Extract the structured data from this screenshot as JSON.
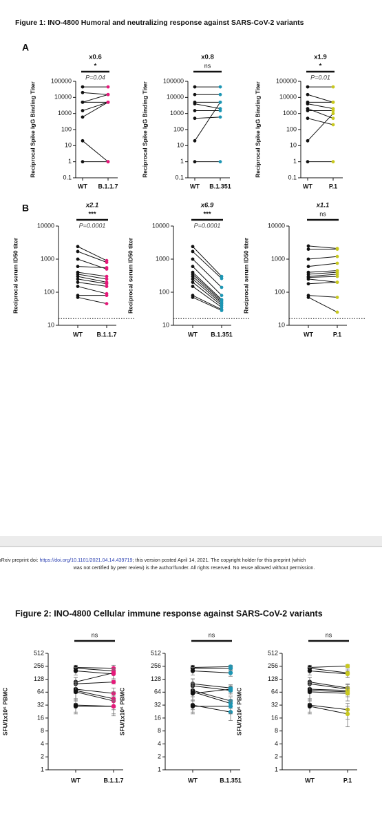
{
  "figure1_title": "Figure 1: INO-4800 Humoral and neutralizing response against SARS-CoV-2 variants",
  "panel_a": "A",
  "panel_b": "B",
  "footer": {
    "prefix": "bioRxiv preprint doi: ",
    "link": "https://doi.org/10.1101/2021.04.14.439719",
    "rest": "; this version posted April 14, 2021. The copyright holder for this preprint (which",
    "line2": "was not certified by peer review) is the author/funder. All rights reserved. No reuse allowed without permission."
  },
  "figure2_title": "Figure 2: INO-4800 Cellular immune response against SARS-CoV-2 variants",
  "chart_data": [
    {
      "type": "paired",
      "fold": "x0.6",
      "significance": "*",
      "p_value": "P=0.04",
      "ylabel": "Reciprocal Spike IgG Binding Titer",
      "categories": [
        "WT",
        "B.1.1.7"
      ],
      "colors": [
        "#111111",
        "#e6197a"
      ],
      "log": true,
      "ylim": [
        0.1,
        100000
      ],
      "yticks": [
        0.1,
        1,
        10,
        100,
        1000,
        10000,
        100000
      ],
      "pairs": [
        [
          45000,
          45000
        ],
        [
          20000,
          15000
        ],
        [
          5000,
          15000
        ],
        [
          5000,
          5000
        ],
        [
          1500,
          5000
        ],
        [
          600,
          5000
        ],
        [
          20,
          1
        ],
        [
          1,
          1
        ]
      ]
    },
    {
      "type": "paired",
      "fold": "x0.8",
      "significance": "ns",
      "ylabel": "Reciprocal Spike IgG Binding Titer",
      "categories": [
        "WT",
        "B.1.351"
      ],
      "colors": [
        "#111111",
        "#1c96b4"
      ],
      "log": true,
      "ylim": [
        0.1,
        100000
      ],
      "yticks": [
        0.1,
        1,
        10,
        100,
        1000,
        10000,
        100000
      ],
      "pairs": [
        [
          45000,
          45000
        ],
        [
          15000,
          15000
        ],
        [
          5000,
          5000
        ],
        [
          4000,
          2000
        ],
        [
          1500,
          1500
        ],
        [
          500,
          600
        ],
        [
          20,
          5000
        ],
        [
          1,
          1
        ]
      ]
    },
    {
      "type": "paired",
      "fold": "x1.9",
      "significance": "*",
      "p_value": "P=0.01",
      "ylabel": "Reciprocal Spike IgG Binding Titer",
      "categories": [
        "WT",
        "P.1"
      ],
      "colors": [
        "#111111",
        "#c8c81e"
      ],
      "log": true,
      "ylim": [
        0.1,
        100000
      ],
      "yticks": [
        0.1,
        1,
        10,
        100,
        1000,
        10000,
        100000
      ],
      "pairs": [
        [
          45000,
          45000
        ],
        [
          15000,
          5000
        ],
        [
          5000,
          5000
        ],
        [
          4000,
          2000
        ],
        [
          2000,
          500
        ],
        [
          1500,
          1500
        ],
        [
          500,
          200
        ],
        [
          20,
          1000
        ],
        [
          1,
          1
        ]
      ]
    },
    {
      "type": "paired",
      "fold": "x2.1",
      "significance": "***",
      "p_value": "P=0.0001",
      "ylabel": "Reciprocal serum ID50 titer",
      "categories": [
        "WT",
        "B.1.1.7"
      ],
      "colors": [
        "#111111",
        "#e6197a"
      ],
      "log": true,
      "hline": 16,
      "ylim": [
        10,
        10000
      ],
      "yticks": [
        10,
        100,
        1000,
        10000
      ],
      "pairs": [
        [
          2400,
          900
        ],
        [
          1700,
          800
        ],
        [
          1000,
          500
        ],
        [
          600,
          550
        ],
        [
          400,
          300
        ],
        [
          350,
          250
        ],
        [
          300,
          200
        ],
        [
          250,
          180
        ],
        [
          200,
          150
        ],
        [
          150,
          90
        ],
        [
          80,
          80
        ],
        [
          70,
          45
        ]
      ]
    },
    {
      "type": "paired",
      "fold": "x6.9",
      "significance": "***",
      "p_value": "P=0.0001",
      "ylabel": "Reciprocal serum ID50 titer",
      "categories": [
        "WT",
        "B.1.351"
      ],
      "colors": [
        "#111111",
        "#1c96b4"
      ],
      "log": true,
      "hline": 16,
      "ylim": [
        10,
        10000
      ],
      "yticks": [
        10,
        100,
        1000,
        10000
      ],
      "pairs": [
        [
          2400,
          300
        ],
        [
          1700,
          260
        ],
        [
          1000,
          140
        ],
        [
          600,
          80
        ],
        [
          400,
          60
        ],
        [
          350,
          55
        ],
        [
          300,
          50
        ],
        [
          250,
          45
        ],
        [
          200,
          40
        ],
        [
          150,
          35
        ],
        [
          80,
          30
        ],
        [
          70,
          28
        ]
      ]
    },
    {
      "type": "paired",
      "fold": "x1.1",
      "significance": "ns",
      "ylabel": "Reciprocal serum ID50 titer",
      "categories": [
        "WT",
        "P.1"
      ],
      "colors": [
        "#111111",
        "#c8c81e"
      ],
      "log": true,
      "hline": 16,
      "ylim": [
        10,
        10000
      ],
      "yticks": [
        10,
        100,
        1000,
        10000
      ],
      "pairs": [
        [
          2500,
          2100
        ],
        [
          2000,
          2000
        ],
        [
          1000,
          1200
        ],
        [
          600,
          750
        ],
        [
          400,
          450
        ],
        [
          350,
          400
        ],
        [
          300,
          350
        ],
        [
          280,
          300
        ],
        [
          250,
          200
        ],
        [
          180,
          200
        ],
        [
          80,
          70
        ],
        [
          70,
          25
        ]
      ]
    },
    {
      "type": "paired",
      "significance": "ns",
      "ylabel": "SFU/1x10⁶ PBMC",
      "categories": [
        "WT",
        "B.1.1.7"
      ],
      "colors": [
        "#111111",
        "#e6197a"
      ],
      "log": true,
      "ylim": [
        1,
        512
      ],
      "yticks": [
        1,
        2,
        4,
        8,
        16,
        32,
        64,
        128,
        256,
        512
      ],
      "pairs": [
        [
          240,
          230
        ],
        [
          230,
          200
        ],
        [
          200,
          170
        ],
        [
          110,
          180
        ],
        [
          100,
          110
        ],
        [
          75,
          60
        ],
        [
          70,
          45
        ],
        [
          65,
          40
        ],
        [
          32,
          30
        ],
        [
          30,
          30
        ]
      ],
      "errors": [
        [
          30,
          40
        ],
        [
          20,
          30
        ],
        [
          40,
          40
        ],
        [
          30,
          50
        ],
        [
          40,
          10
        ],
        [
          30,
          20
        ],
        [
          40,
          20
        ],
        [
          30,
          12
        ],
        [
          10,
          10
        ],
        [
          10,
          12
        ]
      ]
    },
    {
      "type": "paired",
      "significance": "ns",
      "ylabel": "SFU/1x10⁶ PBMC",
      "categories": [
        "WT",
        "B.1.351"
      ],
      "colors": [
        "#111111",
        "#1c96b4"
      ],
      "log": true,
      "ylim": [
        1,
        512
      ],
      "yticks": [
        1,
        2,
        4,
        8,
        16,
        32,
        64,
        128,
        256,
        512
      ],
      "pairs": [
        [
          240,
          250
        ],
        [
          230,
          230
        ],
        [
          200,
          180
        ],
        [
          100,
          80
        ],
        [
          90,
          70
        ],
        [
          70,
          40
        ],
        [
          65,
          35
        ],
        [
          60,
          75
        ],
        [
          32,
          22
        ],
        [
          30,
          30
        ]
      ],
      "errors": [
        [
          30,
          20
        ],
        [
          20,
          30
        ],
        [
          40,
          30
        ],
        [
          30,
          15
        ],
        [
          40,
          15
        ],
        [
          30,
          10
        ],
        [
          40,
          8
        ],
        [
          30,
          15
        ],
        [
          10,
          8
        ],
        [
          10,
          10
        ]
      ]
    },
    {
      "type": "paired",
      "significance": "ns",
      "ylabel": "SFU/1x10⁶ PBMC",
      "categories": [
        "WT",
        "P.1"
      ],
      "colors": [
        "#111111",
        "#c8c81e"
      ],
      "log": true,
      "ylim": [
        1,
        512
      ],
      "yticks": [
        1,
        2,
        4,
        8,
        16,
        32,
        64,
        128,
        256,
        512
      ],
      "pairs": [
        [
          240,
          260
        ],
        [
          230,
          180
        ],
        [
          200,
          170
        ],
        [
          110,
          80
        ],
        [
          100,
          75
        ],
        [
          75,
          70
        ],
        [
          70,
          65
        ],
        [
          65,
          60
        ],
        [
          32,
          25
        ],
        [
          30,
          20
        ]
      ],
      "errors": [
        [
          30,
          20
        ],
        [
          20,
          40
        ],
        [
          40,
          30
        ],
        [
          30,
          20
        ],
        [
          40,
          20
        ],
        [
          30,
          15
        ],
        [
          40,
          15
        ],
        [
          30,
          20
        ],
        [
          10,
          10
        ],
        [
          10,
          10
        ]
      ]
    }
  ]
}
